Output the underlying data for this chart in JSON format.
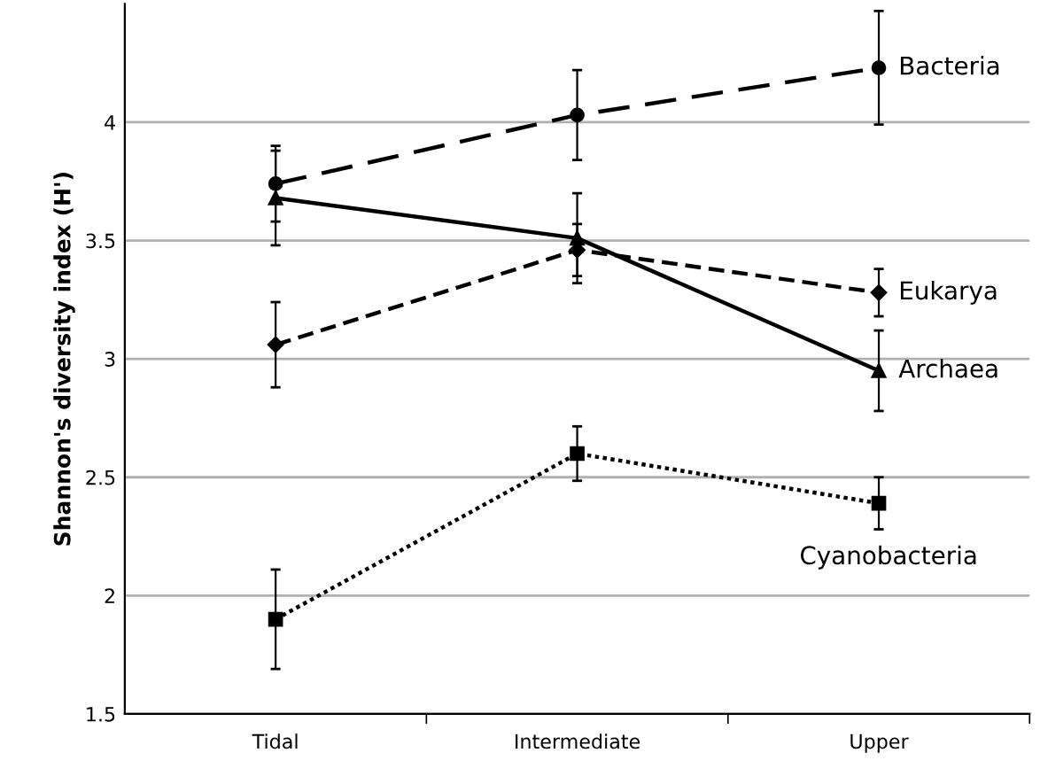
{
  "chart_data": {
    "type": "line",
    "ylabel": "Shannon's diversity index (H')",
    "categories": [
      "Tidal",
      "Intermediate",
      "Upper"
    ],
    "series": [
      {
        "name": "Bacteria",
        "color": "#000000",
        "values": [
          3.74,
          4.03,
          4.23
        ],
        "errors": [
          0.16,
          0.19,
          0.24
        ],
        "marker": "circle",
        "line_style": "dashed"
      },
      {
        "name": "Eukarya",
        "color": "#000000",
        "values": [
          3.06,
          3.46,
          3.28
        ],
        "errors": [
          0.18,
          0.11,
          0.1
        ],
        "marker": "diamond",
        "line_style": "dashed"
      },
      {
        "name": "Archaea",
        "color": "#000000",
        "values": [
          3.68,
          3.51,
          2.95
        ],
        "errors": [
          0.2,
          0.19,
          0.17
        ],
        "marker": "triangle",
        "line_style": "solid"
      },
      {
        "name": "Cyanobacteria",
        "color": "#000000",
        "values": [
          1.9,
          2.6,
          2.39
        ],
        "errors": [
          0.21,
          0.115,
          0.11
        ],
        "marker": "square",
        "line_style": "dotted"
      }
    ],
    "ylim": [
      1.5,
      4.5
    ],
    "yticks": [
      1.5,
      2,
      2.5,
      3,
      3.5,
      4
    ],
    "grid": "y",
    "legend": false
  }
}
